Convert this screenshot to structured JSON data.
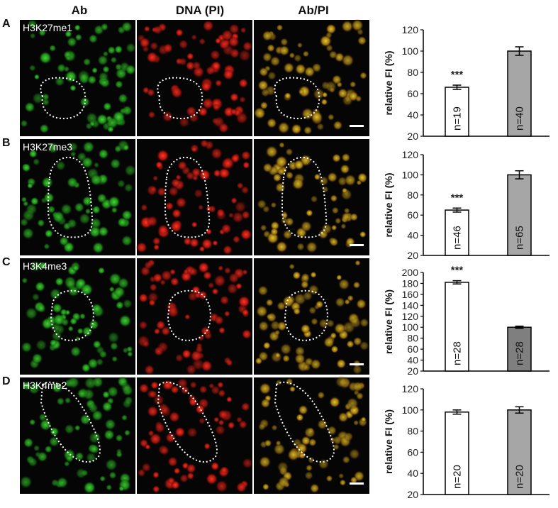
{
  "columns": [
    "Ab",
    "DNA (PI)",
    "Ab/PI"
  ],
  "panels": [
    {
      "letter": "A",
      "label": "H3K27me1",
      "chart": {
        "type": "bar",
        "ylabel": "relative FI (%)",
        "ylim": [
          20,
          120
        ],
        "yticks": [
          "20",
          "40",
          "60",
          "80",
          "100",
          "120"
        ],
        "values": [
          66,
          100
        ],
        "errors": [
          2,
          4
        ],
        "n_labels": [
          "n=19",
          "n=40"
        ],
        "significance": [
          "***",
          ""
        ],
        "bar_colors": [
          "#ffffff",
          "#a6a6a6"
        ]
      }
    },
    {
      "letter": "B",
      "label": "H3K27me3",
      "chart": {
        "type": "bar",
        "ylabel": "relative FI (%)",
        "ylim": [
          20,
          120
        ],
        "yticks": [
          "20",
          "40",
          "60",
          "80",
          "100",
          "120"
        ],
        "values": [
          65,
          100
        ],
        "errors": [
          2,
          4
        ],
        "n_labels": [
          "n=46",
          "n=65"
        ],
        "significance": [
          "***",
          ""
        ],
        "bar_colors": [
          "#ffffff",
          "#a6a6a6"
        ]
      }
    },
    {
      "letter": "C",
      "label": "H3K4me3",
      "chart": {
        "type": "bar",
        "ylabel": "relative FI (%)",
        "ylim": [
          20,
          200
        ],
        "yticks": [
          "20",
          "40",
          "60",
          "80",
          "100",
          "120",
          "140",
          "160",
          "180",
          "200"
        ],
        "values": [
          182,
          100
        ],
        "errors": [
          3,
          2
        ],
        "n_labels": [
          "n=28",
          "n=28"
        ],
        "significance": [
          "***",
          ""
        ],
        "bar_colors": [
          "#ffffff",
          "#7f7f7f"
        ]
      }
    },
    {
      "letter": "D",
      "label": "H3K4me2",
      "chart": {
        "type": "bar",
        "ylabel": "relative FI (%)",
        "ylim": [
          20,
          120
        ],
        "yticks": [
          "20",
          "40",
          "60",
          "80",
          "100",
          "120"
        ],
        "values": [
          98,
          100
        ],
        "errors": [
          2,
          3
        ],
        "n_labels": [
          "n=20",
          "n=20"
        ],
        "significance": [
          "",
          ""
        ],
        "bar_colors": [
          "#ffffff",
          "#a6a6a6"
        ]
      }
    }
  ]
}
